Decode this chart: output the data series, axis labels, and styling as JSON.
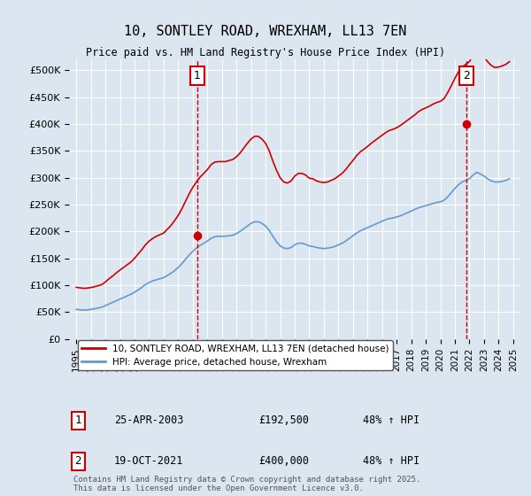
{
  "title": "10, SONTLEY ROAD, WREXHAM, LL13 7EN",
  "subtitle": "Price paid vs. HM Land Registry's House Price Index (HPI)",
  "bg_color": "#dce6f0",
  "plot_bg_color": "#dce6f0",
  "red_line_color": "#cc0000",
  "blue_line_color": "#6699cc",
  "dashed_line_color": "#cc0000",
  "grid_color": "#ffffff",
  "ylim": [
    0,
    520000
  ],
  "yticks": [
    0,
    50000,
    100000,
    150000,
    200000,
    250000,
    300000,
    350000,
    400000,
    450000,
    500000
  ],
  "ytick_labels": [
    "£0",
    "£50K",
    "£100K",
    "£150K",
    "£200K",
    "£250K",
    "£300K",
    "£350K",
    "£400K",
    "£450K",
    "£500K"
  ],
  "xlim_start": 1994.5,
  "xlim_end": 2025.5,
  "xticks": [
    1995,
    1996,
    1997,
    1998,
    1999,
    2000,
    2001,
    2002,
    2003,
    2004,
    2005,
    2006,
    2007,
    2008,
    2009,
    2010,
    2011,
    2012,
    2013,
    2014,
    2015,
    2016,
    2017,
    2018,
    2019,
    2020,
    2021,
    2022,
    2023,
    2024,
    2025
  ],
  "sale1_x": 2003.32,
  "sale1_y": 192500,
  "sale1_label": "1",
  "sale2_x": 2021.8,
  "sale2_y": 400000,
  "sale2_label": "2",
  "legend_line1": "10, SONTLEY ROAD, WREXHAM, LL13 7EN (detached house)",
  "legend_line2": "HPI: Average price, detached house, Wrexham",
  "table_row1": [
    "1",
    "25-APR-2003",
    "£192,500",
    "48% ↑ HPI"
  ],
  "table_row2": [
    "2",
    "19-OCT-2021",
    "£400,000",
    "48% ↑ HPI"
  ],
  "footer": "Contains HM Land Registry data © Crown copyright and database right 2025.\nThis data is licensed under the Open Government Licence v3.0.",
  "hpi_data_x": [
    1995.0,
    1995.25,
    1995.5,
    1995.75,
    1996.0,
    1996.25,
    1996.5,
    1996.75,
    1997.0,
    1997.25,
    1997.5,
    1997.75,
    1998.0,
    1998.25,
    1998.5,
    1998.75,
    1999.0,
    1999.25,
    1999.5,
    1999.75,
    2000.0,
    2000.25,
    2000.5,
    2000.75,
    2001.0,
    2001.25,
    2001.5,
    2001.75,
    2002.0,
    2002.25,
    2002.5,
    2002.75,
    2003.0,
    2003.25,
    2003.5,
    2003.75,
    2004.0,
    2004.25,
    2004.5,
    2004.75,
    2005.0,
    2005.25,
    2005.5,
    2005.75,
    2006.0,
    2006.25,
    2006.5,
    2006.75,
    2007.0,
    2007.25,
    2007.5,
    2007.75,
    2008.0,
    2008.25,
    2008.5,
    2008.75,
    2009.0,
    2009.25,
    2009.5,
    2009.75,
    2010.0,
    2010.25,
    2010.5,
    2010.75,
    2011.0,
    2011.25,
    2011.5,
    2011.75,
    2012.0,
    2012.25,
    2012.5,
    2012.75,
    2013.0,
    2013.25,
    2013.5,
    2013.75,
    2014.0,
    2014.25,
    2014.5,
    2014.75,
    2015.0,
    2015.25,
    2015.5,
    2015.75,
    2016.0,
    2016.25,
    2016.5,
    2016.75,
    2017.0,
    2017.25,
    2017.5,
    2017.75,
    2018.0,
    2018.25,
    2018.5,
    2018.75,
    2019.0,
    2019.25,
    2019.5,
    2019.75,
    2020.0,
    2020.25,
    2020.5,
    2020.75,
    2021.0,
    2021.25,
    2021.5,
    2021.75,
    2022.0,
    2022.25,
    2022.5,
    2022.75,
    2023.0,
    2023.25,
    2023.5,
    2023.75,
    2024.0,
    2024.25,
    2024.5,
    2024.75
  ],
  "hpi_data_y": [
    55000,
    54000,
    53500,
    54000,
    55000,
    56000,
    57500,
    59000,
    62000,
    65000,
    68000,
    71000,
    74000,
    77000,
    80000,
    83000,
    87000,
    91000,
    96000,
    101000,
    105000,
    108000,
    110000,
    112000,
    114000,
    118000,
    122000,
    127000,
    133000,
    140000,
    148000,
    156000,
    163000,
    169000,
    174000,
    178000,
    182000,
    187000,
    190000,
    191000,
    191000,
    191000,
    192000,
    193000,
    196000,
    200000,
    205000,
    210000,
    215000,
    218000,
    218000,
    215000,
    210000,
    202000,
    191000,
    181000,
    173000,
    169000,
    168000,
    170000,
    175000,
    178000,
    178000,
    176000,
    173000,
    172000,
    170000,
    169000,
    168000,
    169000,
    170000,
    172000,
    175000,
    178000,
    182000,
    187000,
    192000,
    197000,
    201000,
    204000,
    207000,
    210000,
    213000,
    216000,
    219000,
    222000,
    224000,
    225000,
    227000,
    229000,
    232000,
    235000,
    238000,
    241000,
    244000,
    246000,
    248000,
    250000,
    252000,
    254000,
    255000,
    258000,
    264000,
    272000,
    280000,
    287000,
    292000,
    295000,
    298000,
    305000,
    310000,
    307000,
    303000,
    298000,
    294000,
    292000,
    292000,
    293000,
    295000,
    298000
  ],
  "red_data_x": [
    1995.0,
    1995.25,
    1995.5,
    1995.75,
    1996.0,
    1996.25,
    1996.5,
    1996.75,
    1997.0,
    1997.25,
    1997.5,
    1997.75,
    1998.0,
    1998.25,
    1998.5,
    1998.75,
    1999.0,
    1999.25,
    1999.5,
    1999.75,
    2000.0,
    2000.25,
    2000.5,
    2000.75,
    2001.0,
    2001.25,
    2001.5,
    2001.75,
    2002.0,
    2002.25,
    2002.5,
    2002.75,
    2003.0,
    2003.25,
    2003.5,
    2003.75,
    2004.0,
    2004.25,
    2004.5,
    2004.75,
    2005.0,
    2005.25,
    2005.5,
    2005.75,
    2006.0,
    2006.25,
    2006.5,
    2006.75,
    2007.0,
    2007.25,
    2007.5,
    2007.75,
    2008.0,
    2008.25,
    2008.5,
    2008.75,
    2009.0,
    2009.25,
    2009.5,
    2009.75,
    2010.0,
    2010.25,
    2010.5,
    2010.75,
    2011.0,
    2011.25,
    2011.5,
    2011.75,
    2012.0,
    2012.25,
    2012.5,
    2012.75,
    2013.0,
    2013.25,
    2013.5,
    2013.75,
    2014.0,
    2014.25,
    2014.5,
    2014.75,
    2015.0,
    2015.25,
    2015.5,
    2015.75,
    2016.0,
    2016.25,
    2016.5,
    2016.75,
    2017.0,
    2017.25,
    2017.5,
    2017.75,
    2018.0,
    2018.25,
    2018.5,
    2018.75,
    2019.0,
    2019.25,
    2019.5,
    2019.75,
    2020.0,
    2020.25,
    2020.5,
    2020.75,
    2021.0,
    2021.25,
    2021.5,
    2021.75,
    2022.0,
    2022.25,
    2022.5,
    2022.75,
    2023.0,
    2023.25,
    2023.5,
    2023.75,
    2024.0,
    2024.25,
    2024.5,
    2024.75
  ],
  "red_data_y": [
    96000,
    95000,
    94000,
    94500,
    95500,
    97000,
    99000,
    101000,
    106000,
    112000,
    117000,
    123000,
    128000,
    133000,
    138000,
    143000,
    150000,
    158000,
    166000,
    175000,
    182000,
    187000,
    191000,
    194000,
    197000,
    204000,
    211000,
    220000,
    230000,
    242000,
    256000,
    270000,
    282000,
    292000,
    301000,
    308000,
    315000,
    324000,
    329000,
    330000,
    330000,
    330000,
    332000,
    334000,
    339000,
    346000,
    355000,
    364000,
    372000,
    377000,
    377000,
    372000,
    364000,
    350000,
    331000,
    314000,
    300000,
    292000,
    290000,
    294000,
    303000,
    308000,
    308000,
    305000,
    299000,
    298000,
    294000,
    292000,
    291000,
    292000,
    295000,
    298000,
    303000,
    308000,
    315000,
    324000,
    332000,
    341000,
    348000,
    353000,
    358000,
    364000,
    369000,
    374000,
    379000,
    384000,
    388000,
    390000,
    393000,
    397000,
    402000,
    407000,
    412000,
    417000,
    423000,
    427000,
    430000,
    433000,
    437000,
    440000,
    442000,
    447000,
    458000,
    471000,
    485000,
    497000,
    506000,
    511000,
    516000,
    528000,
    537000,
    531000,
    525000,
    516000,
    509000,
    505000,
    506000,
    508000,
    511000,
    516000
  ]
}
